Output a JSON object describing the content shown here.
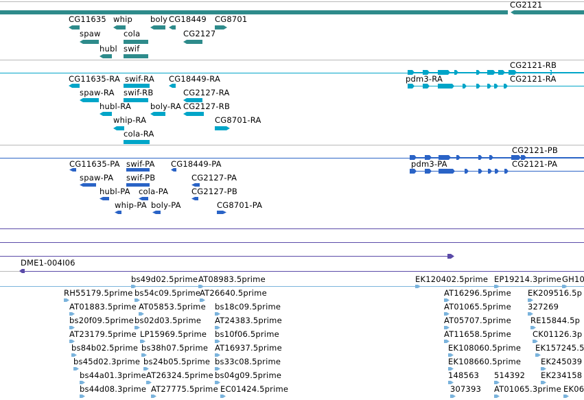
{
  "colors": {
    "gene": "#2e8b8b",
    "transcript_ra": "#00a5c8",
    "transcript_pa": "#2a63c6",
    "genomic": "#5a4aa8",
    "est": "#7ab3dc",
    "separator": "#b8b8b8"
  },
  "tracks": {
    "genes": {
      "labels": [
        "CG2121",
        "CG11635",
        "whip",
        "boly",
        "CG18449",
        "CG8701",
        "spaw",
        "cola",
        "CG2127",
        "hubl",
        "swif"
      ]
    },
    "transcripts_ra": {
      "labels": [
        "CG2121-RB",
        "CG11635-RA",
        "swif-RA",
        "CG18449-RA",
        "pdm3-RA",
        "CG2121-RA",
        "spaw-RA",
        "swif-RB",
        "CG2127-RA",
        "hubl-RA",
        "boly-RA",
        "CG2127-RB",
        "whip-RA",
        "CG8701-RA",
        "cola-RA"
      ]
    },
    "transcripts_pa": {
      "labels": [
        "CG2121-PB",
        "CG11635-PA",
        "swif-PA",
        "CG18449-PA",
        "pdm3-PA",
        "CG2121-PA",
        "spaw-PA",
        "swif-PB",
        "CG2127-PA",
        "hubl-PA",
        "cola-PA",
        "CG2127-PB",
        "whip-PA",
        "boly-PA",
        "CG8701-PA"
      ]
    },
    "clone": {
      "labels": [
        "DME1-004I06"
      ]
    },
    "ests": {
      "labels": [
        "bs49d02.5prime",
        "AT08983.5prime",
        "EK120402.5prime",
        "EP19214.3prime",
        "GH10",
        "RH55179.5prime",
        "bs54c09.5prime",
        "AT26640.5prime",
        "AT16296.5prime",
        "EK209516.5p",
        "AT01883.5prime",
        "AT05853.5prime",
        "bs18c09.5prime",
        "AT01065.5prime",
        "327269",
        "bs20f09.5prime",
        "bs02d03.5prime",
        "AT24383.5prime",
        "AT05707.5prime",
        "RE15844.5p",
        "AT23179.5prime",
        "LP15969.5prime",
        "bs10f06.5prime",
        "AT11658.5prime",
        "CK01126.3p",
        "bs84b02.5prime",
        "bs38h07.5prime",
        "AT16937.5prime",
        "EK108060.5prime",
        "EK157245.5",
        "bs45d02.3prime",
        "bs24b05.5prime",
        "bs33c08.5prime",
        "EK108660.5prime",
        "EK245039",
        "bs44a01.3prime",
        "AT26324.5prime",
        "bs04g09.5prime",
        "148563",
        "514392",
        "EK234158",
        "bs44d08.3prime",
        "AT27775.5prime",
        "EC01424.5prime",
        "307393",
        "AT01065.3prime",
        "EK06"
      ]
    }
  }
}
